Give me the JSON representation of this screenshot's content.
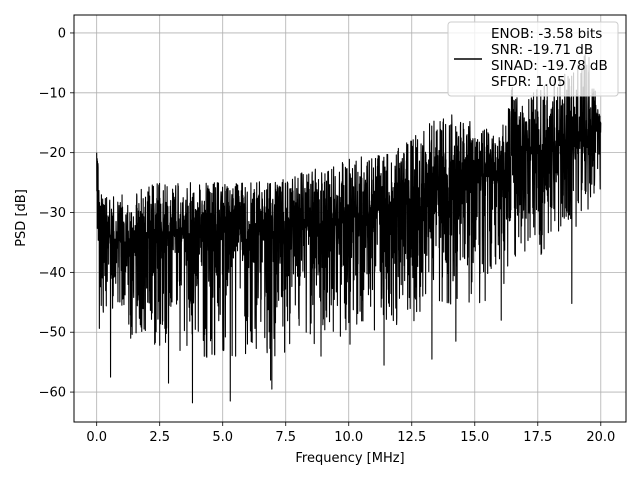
{
  "chart_data": {
    "type": "line",
    "title": "",
    "xlabel": "Frequency [MHz]",
    "ylabel": "PSD [dB]",
    "xlim": [
      -0.9,
      21.0
    ],
    "ylim": [
      -65,
      3
    ],
    "xticks": [
      0.0,
      2.5,
      5.0,
      7.5,
      10.0,
      12.5,
      15.0,
      17.5,
      20.0
    ],
    "xtick_labels": [
      "0.0",
      "2.5",
      "5.0",
      "7.5",
      "10.0",
      "12.5",
      "15.0",
      "17.5",
      "20.0"
    ],
    "yticks": [
      0,
      -10,
      -20,
      -30,
      -40,
      -50,
      -60
    ],
    "ytick_labels": [
      "0",
      "−10",
      "−20",
      "−30",
      "−40",
      "−50",
      "−60"
    ],
    "grid": true,
    "legend_position": "top-right",
    "series_color": "#000000",
    "series": [
      {
        "legend_lines": [
          "ENOB: -3.58 bits",
          "SNR: -19.71 dB",
          "SINAD: -19.78 dB",
          "SFDR: 1.05"
        ],
        "x_range": [
          0.0,
          20.0
        ],
        "envelope": {
          "x": [
            0.0,
            0.1,
            0.5,
            1.0,
            2.5,
            5.0,
            7.5,
            10.0,
            12.0,
            12.5,
            14.0,
            15.0,
            16.0,
            16.5,
            17.0,
            17.5,
            18.0,
            18.5,
            19.0,
            19.5,
            20.0
          ],
          "mean": [
            -20,
            -33,
            -34,
            -35,
            -34,
            -33,
            -33,
            -31,
            -29,
            -28,
            -26,
            -24,
            -24,
            -21,
            -20,
            -20,
            -20,
            -18,
            -17,
            -16,
            -15
          ],
          "upper": [
            -17,
            -26,
            -27,
            -27,
            -25,
            -25,
            -24,
            -21,
            -19,
            -17,
            -13,
            -15,
            -17,
            -8,
            -12,
            -7,
            -8,
            -7,
            -5,
            -3,
            -14
          ],
          "lower": [
            -42,
            -57,
            -52,
            -55,
            -59,
            -62,
            -61,
            -58,
            -56,
            -55,
            -52,
            -53,
            -50,
            -45,
            -44,
            -44,
            -40,
            -45,
            -38,
            -34,
            -30
          ]
        },
        "dips": [
          {
            "x": 0.55,
            "y": -57.5
          },
          {
            "x": 1.35,
            "y": -51
          },
          {
            "x": 2.3,
            "y": -52
          },
          {
            "x": 2.85,
            "y": -58.5
          },
          {
            "x": 3.8,
            "y": -61.8
          },
          {
            "x": 4.35,
            "y": -54
          },
          {
            "x": 5.3,
            "y": -61.5
          },
          {
            "x": 6.9,
            "y": -58
          },
          {
            "x": 6.95,
            "y": -59.5
          },
          {
            "x": 8.9,
            "y": -54
          },
          {
            "x": 10.05,
            "y": -52
          },
          {
            "x": 11.4,
            "y": -55.5
          },
          {
            "x": 13.3,
            "y": -54.5
          },
          {
            "x": 14.25,
            "y": -51.5
          },
          {
            "x": 16.05,
            "y": -48
          },
          {
            "x": 18.85,
            "y": -45.2
          }
        ]
      }
    ]
  }
}
